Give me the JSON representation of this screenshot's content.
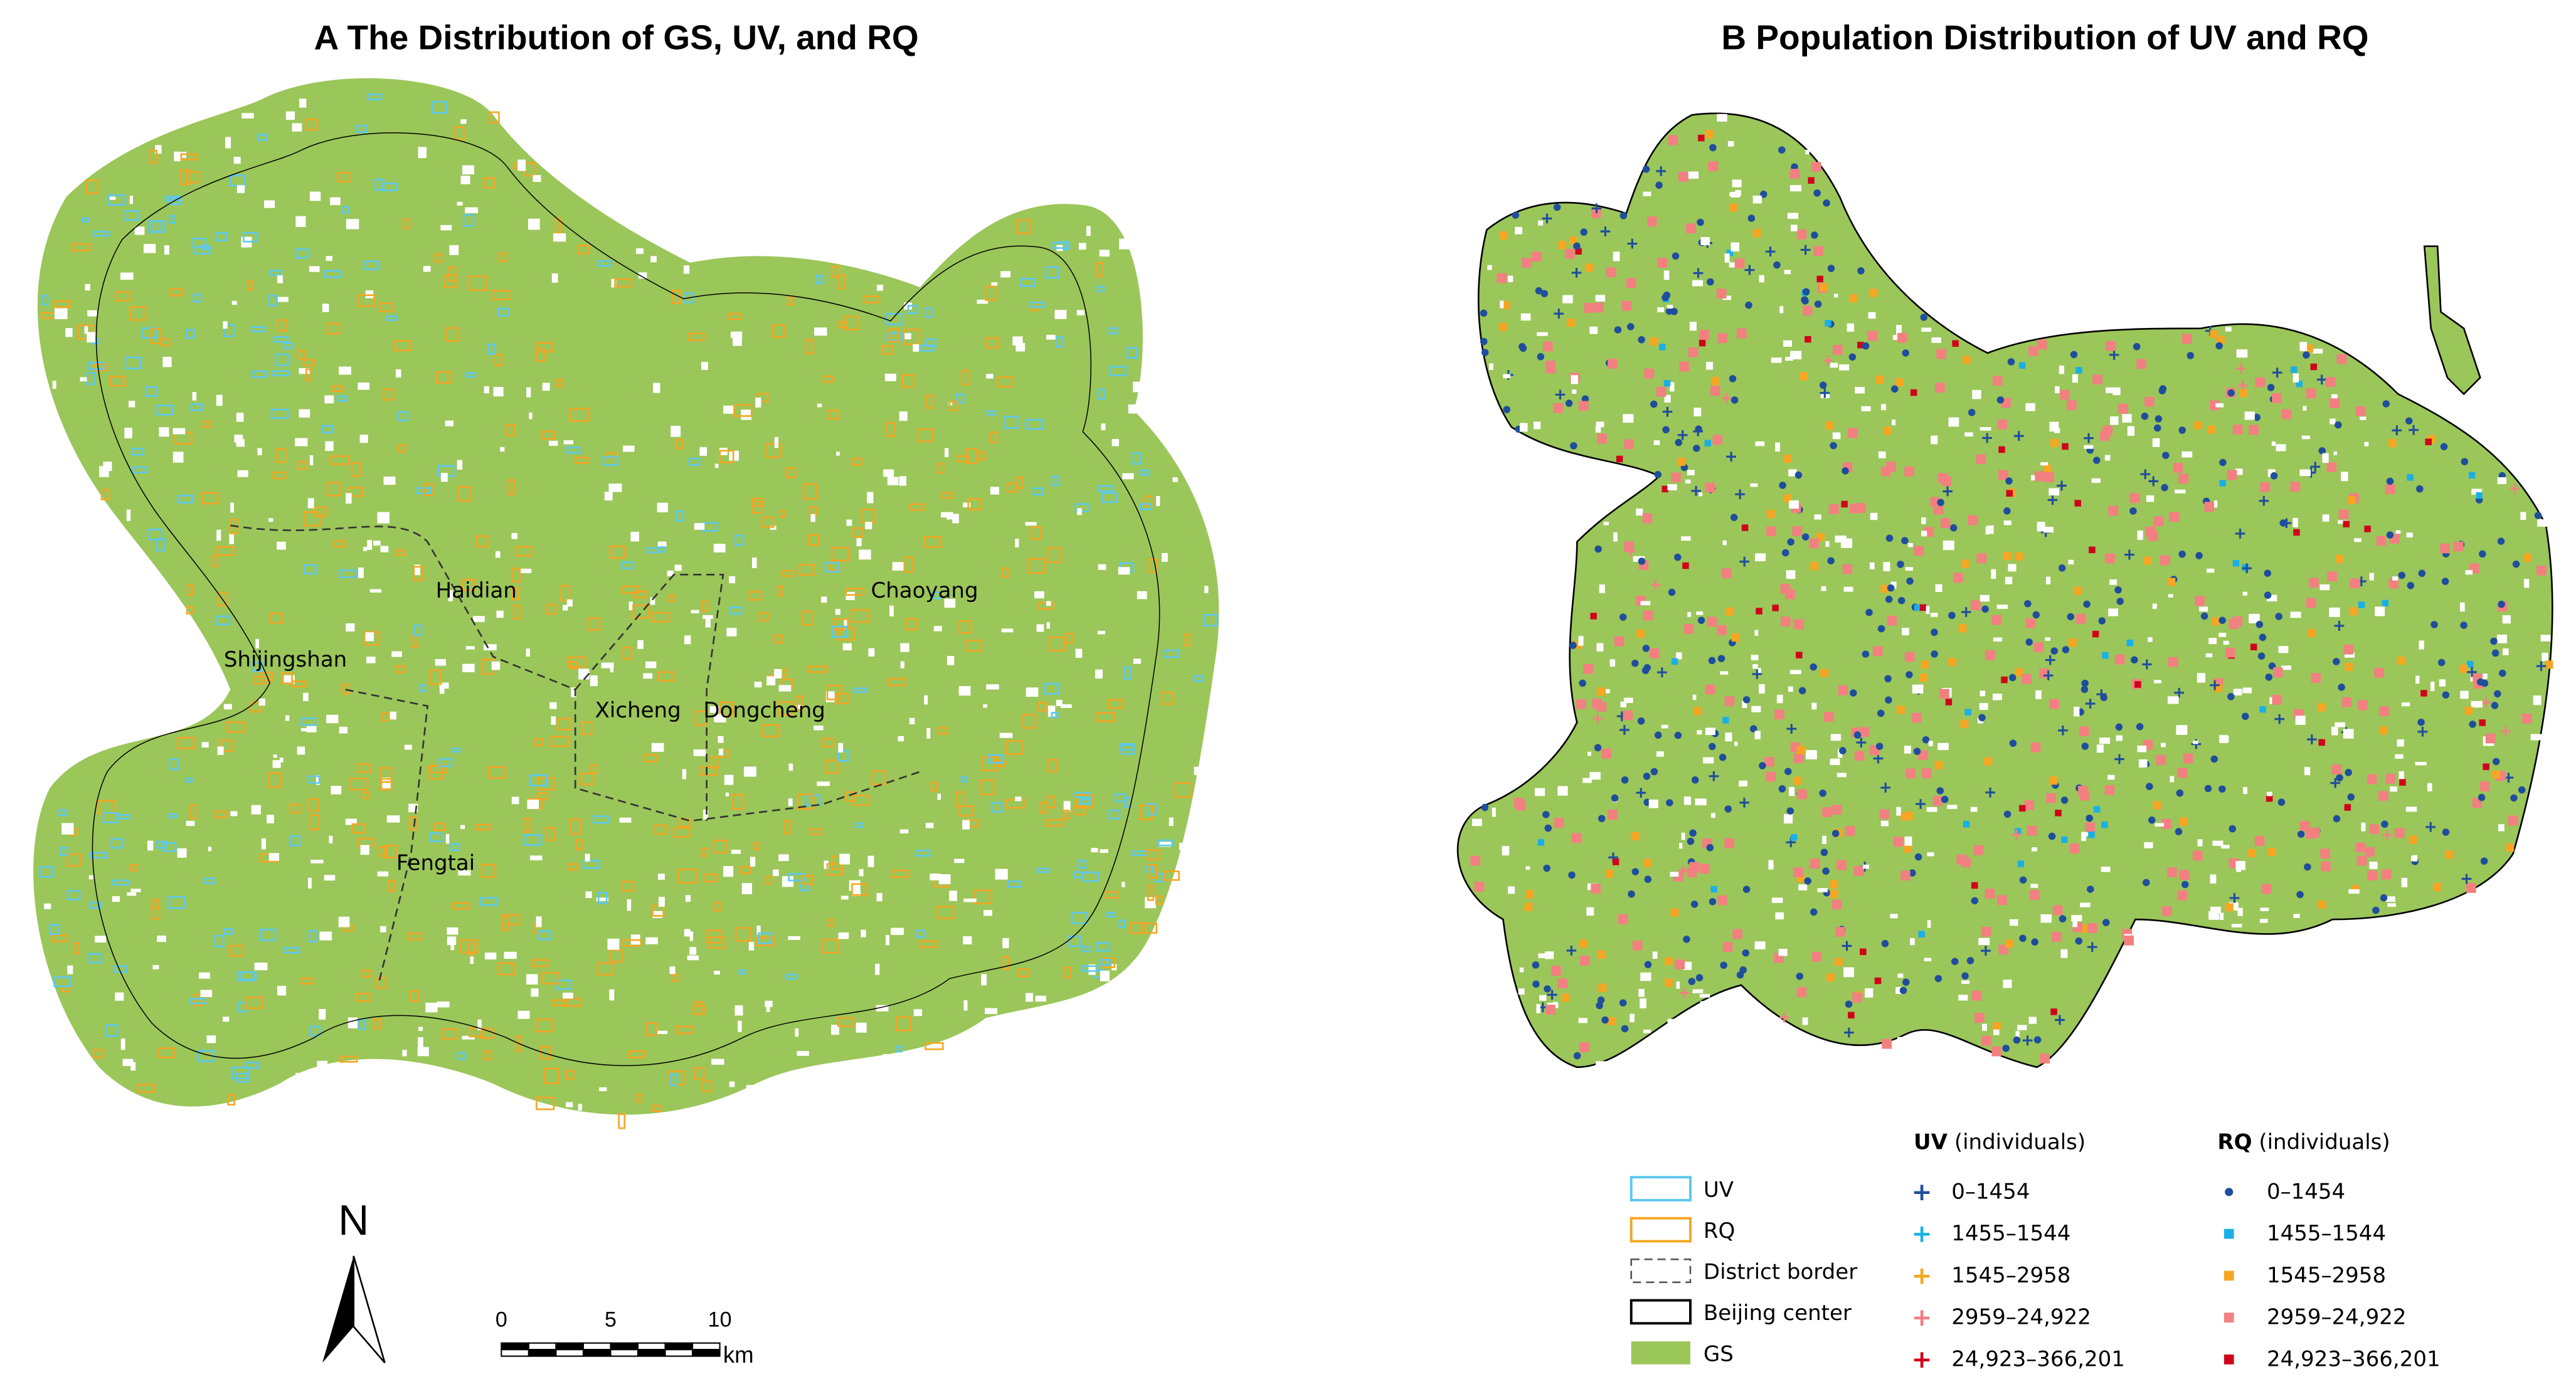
{
  "panels": [
    {
      "title": "A The Distribution of GS, UV, and RQ",
      "district_labels": [
        "Haidian",
        "Chaoyang",
        "Shijingshan",
        "Xicheng",
        "Dongcheng",
        "Fengtai"
      ]
    },
    {
      "title": "B Population Distribution of UV and RQ"
    }
  ],
  "legend": {
    "items": [
      "UV",
      "RQ",
      "District border",
      "Beijing center",
      "GS"
    ]
  },
  "uv_legend": {
    "title": "UV",
    "unit": "(individuals)",
    "classes": [
      "0–1454",
      "1455–1544",
      "1545–2958",
      "2959–24,922",
      "24,923–366,201"
    ]
  },
  "rq_legend": {
    "title": "RQ",
    "unit": "(individuals)",
    "classes": [
      "0–1454",
      "1455–1544",
      "1545–2958",
      "2959–24,922",
      "24,923–366,201"
    ]
  },
  "north": "N",
  "scale": {
    "ticks": [
      0,
      5,
      10
    ],
    "unit": "km"
  }
}
